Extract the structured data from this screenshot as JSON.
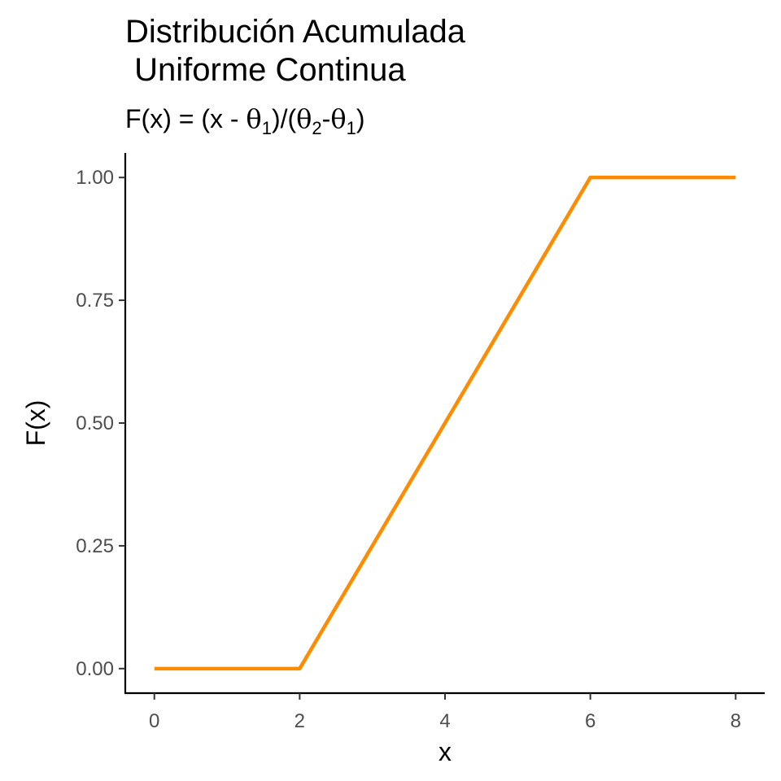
{
  "chart_data": {
    "type": "line",
    "title_line1": "Distribución Acumulada",
    "title_line2": " Uniforme Continua",
    "subtitle": {
      "prefix": "F(x) = (x - ",
      "theta": "θ",
      "sub1": "1",
      "middle": ")/(",
      "sub2": "2",
      "dash": "-",
      "suffix": ")"
    },
    "xlabel": "x",
    "ylabel": "F(x)",
    "xlim": [
      -0.4,
      8.4
    ],
    "ylim": [
      -0.05,
      1.05
    ],
    "x_ticks": [
      0,
      2,
      4,
      6,
      8
    ],
    "x_tick_labels": [
      "0",
      "2",
      "4",
      "6",
      "8"
    ],
    "y_ticks": [
      0,
      0.25,
      0.5,
      0.75,
      1.0
    ],
    "y_tick_labels": [
      "0.00",
      "0.25",
      "0.50",
      "0.75",
      "1.00"
    ],
    "grid": false,
    "series": [
      {
        "color": "#ff8c00",
        "x": [
          0,
          2,
          6,
          8
        ],
        "y": [
          0,
          0,
          1,
          1
        ]
      }
    ]
  }
}
